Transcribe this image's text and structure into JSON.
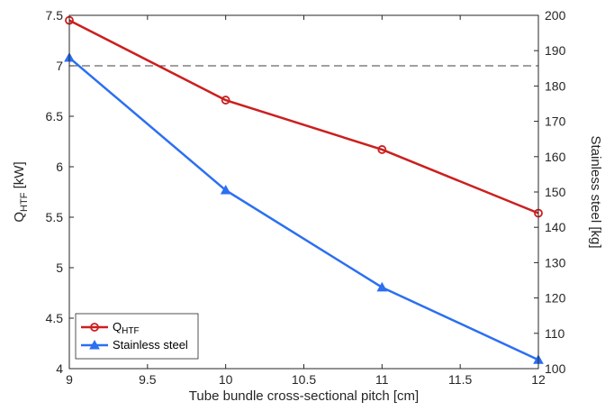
{
  "chart_data": {
    "type": "line",
    "xlabel": "Tube bundle cross-sectional pitch  [cm]",
    "ylabel_left": {
      "main": "Q",
      "sub": "HTF",
      "rest": "  [kW]"
    },
    "ylabel_right": "Stainless steel  [kg]",
    "xlim": [
      9,
      12
    ],
    "ylim_left": [
      4,
      7.5
    ],
    "ylim_right": [
      100,
      200
    ],
    "xticks": [
      "9",
      "9.5",
      "10",
      "10.5",
      "11",
      "11.5",
      "12"
    ],
    "yticks_left": [
      "4",
      "4.5",
      "5",
      "5.5",
      "6",
      "6.5",
      "7",
      "7.5"
    ],
    "yticks_right": [
      "100",
      "110",
      "120",
      "130",
      "140",
      "150",
      "160",
      "170",
      "180",
      "190",
      "200"
    ],
    "reference_line": {
      "axis": "left",
      "y": 7,
      "style": "dashed",
      "color": "#404040"
    },
    "series": [
      {
        "name": "Q",
        "name_sub": "HTF",
        "axis": "left",
        "color": "#cc1f1f",
        "marker": "circle",
        "x": [
          9,
          10,
          11,
          12
        ],
        "y": [
          7.45,
          6.66,
          6.17,
          5.54
        ]
      },
      {
        "name": "Stainless steel",
        "axis": "right",
        "color": "#2b6ff2",
        "marker": "triangle",
        "x": [
          9,
          10,
          11,
          12
        ],
        "y": [
          188,
          150.5,
          123,
          102.5
        ]
      }
    ],
    "legend": {
      "position": "bottom-left"
    },
    "grid": false
  }
}
